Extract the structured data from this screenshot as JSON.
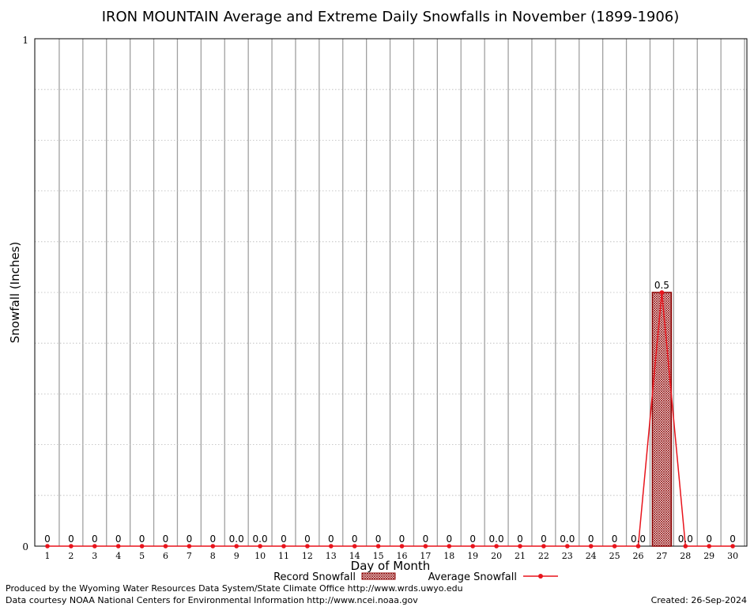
{
  "chart_data": {
    "type": "bar",
    "title": "IRON MOUNTAIN Average and Extreme Daily Snowfalls in November (1899-1906)",
    "xlabel": "Day of Month",
    "ylabel": "Snowfall (Inches)",
    "ylim": [
      0,
      1
    ],
    "y_ticks": [
      "0",
      "1"
    ],
    "grid": true,
    "legend_position": "bottom-center",
    "categories": [
      "1",
      "2",
      "3",
      "4",
      "5",
      "6",
      "7",
      "8",
      "9",
      "10",
      "11",
      "12",
      "13",
      "14",
      "15",
      "16",
      "17",
      "18",
      "19",
      "20",
      "21",
      "22",
      "23",
      "24",
      "25",
      "26",
      "27",
      "28",
      "29",
      "30"
    ],
    "series": [
      {
        "name": "Record Snowfall",
        "type": "bar",
        "values": [
          0,
          0,
          0,
          0,
          0,
          0,
          0,
          0,
          0,
          0,
          0,
          0,
          0,
          0,
          0,
          0,
          0,
          0,
          0,
          0,
          0,
          0,
          0,
          0,
          0,
          0,
          0.5,
          0,
          0,
          0
        ],
        "labels": [
          "0",
          "0",
          "0",
          "0",
          "0",
          "0",
          "0",
          "0",
          "0.0",
          "0.0",
          "0",
          "0",
          "0",
          "0",
          "0",
          "0",
          "0",
          "0",
          "0",
          "0.0",
          "0",
          "0",
          "0.0",
          "0",
          "0",
          "0.0",
          "0.5",
          "0.0",
          "0",
          "0"
        ]
      },
      {
        "name": "Average Snowfall",
        "type": "line",
        "values": [
          0,
          0,
          0,
          0,
          0,
          0,
          0,
          0,
          0,
          0,
          0,
          0,
          0,
          0,
          0,
          0,
          0,
          0,
          0,
          0,
          0,
          0,
          0,
          0,
          0,
          0,
          0.5,
          0,
          0,
          0
        ]
      }
    ],
    "colors": {
      "line": "#e8141c",
      "bar_edge": "#8b0000",
      "grid": "#a0a0a0"
    }
  },
  "footer": {
    "produced_by": "Produced by the Wyoming Water Resources Data System/State Climate Office http://www.wrds.uwyo.edu",
    "courtesy": "Data courtesy NOAA National Centers for Environmental Information http://www.ncei.noaa.gov",
    "created": "Created: 26-Sep-2024"
  }
}
